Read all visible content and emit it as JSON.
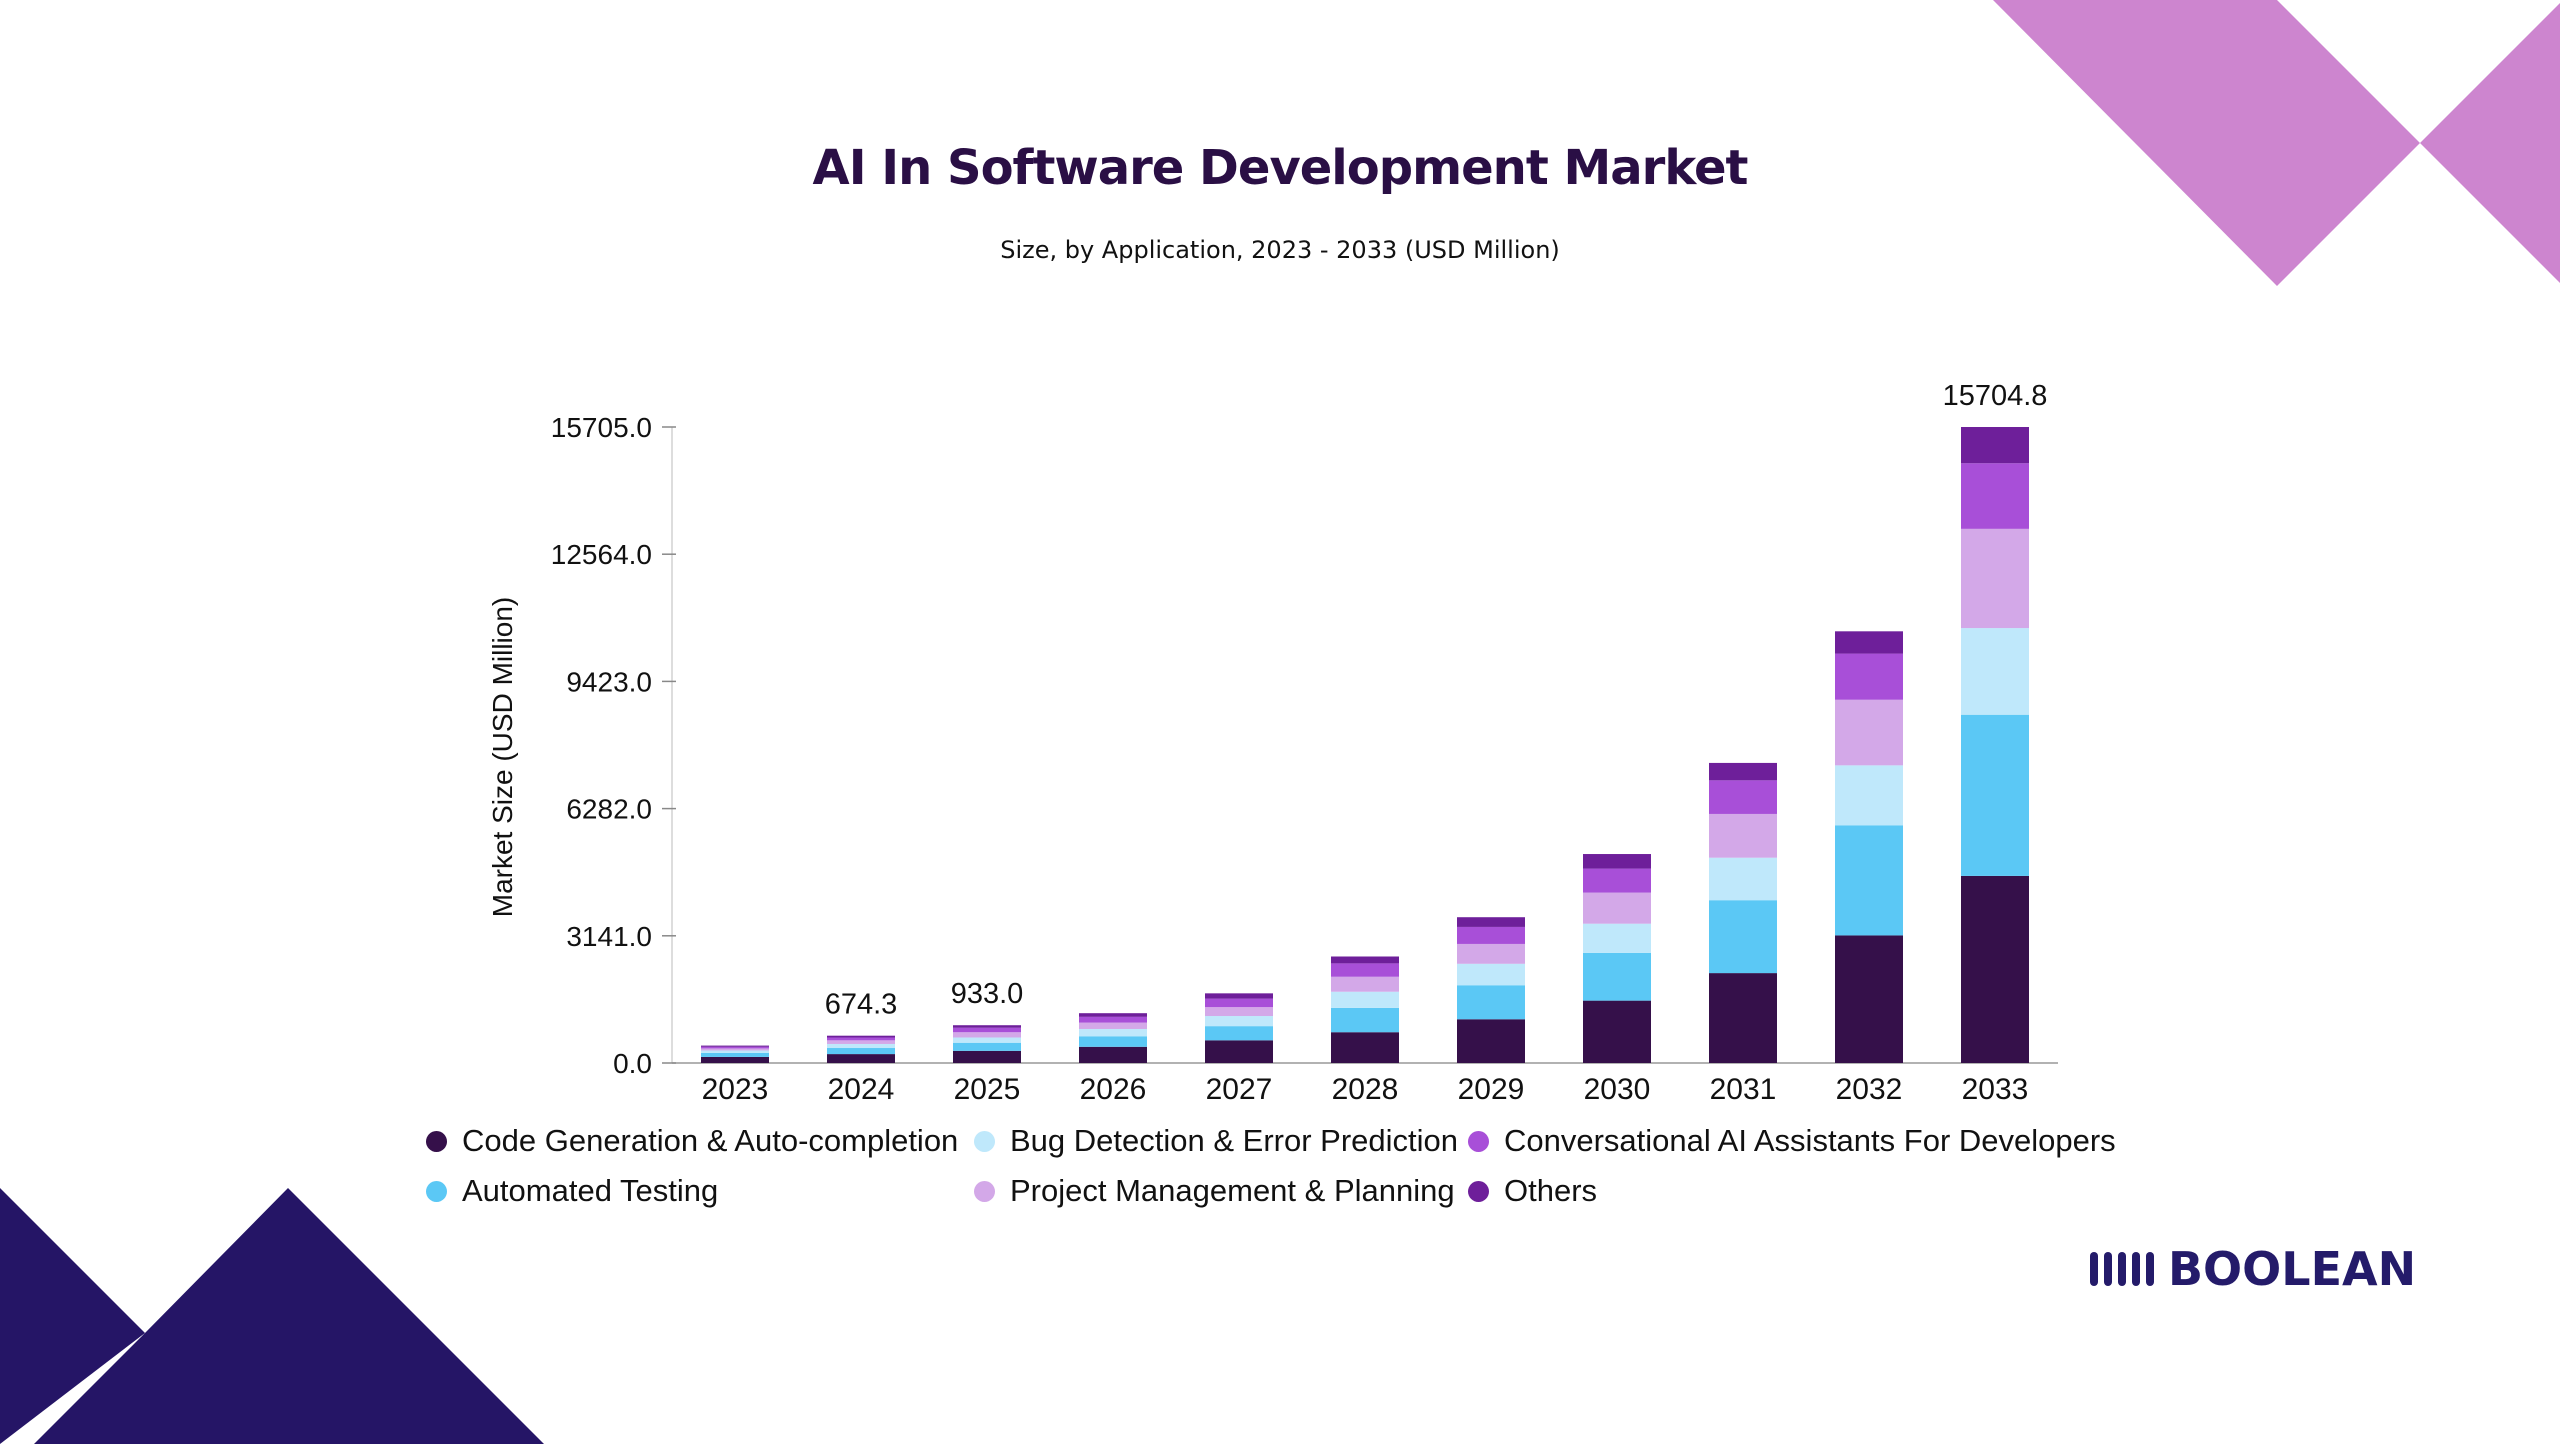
{
  "page": {
    "title": "AI In Software Development Market",
    "subtitle": "Size, by Application, 2023 - 2033 (USD Million)"
  },
  "brand": {
    "name": "BOOLEAN",
    "icon": "bars-logo-icon"
  },
  "colors": {
    "title": "#2a0f45",
    "decor_pink": "#cd85cf",
    "decor_navy": "#251566",
    "brand": "#241b6a"
  },
  "chart_data": {
    "type": "bar",
    "stacked": true,
    "categories": [
      "2023",
      "2024",
      "2025",
      "2026",
      "2027",
      "2028",
      "2029",
      "2030",
      "2031",
      "2032",
      "2033"
    ],
    "series": [
      {
        "name": "Code Generation & Auto-completion",
        "color": "#35104a",
        "values": [
          150,
          220,
          300,
          400,
          560,
          760,
          1080,
          1540,
          2220,
          3150,
          4620
        ]
      },
      {
        "name": "Automated Testing",
        "color": "#5bc8f5",
        "values": [
          100,
          150,
          200,
          260,
          350,
          600,
          840,
          1180,
          1800,
          2720,
          3980
        ]
      },
      {
        "name": "Bug Detection & Error Prediction",
        "color": "#bfe8fb",
        "values": [
          60,
          100,
          130,
          180,
          250,
          400,
          530,
          720,
          1050,
          1480,
          2140
        ]
      },
      {
        "name": "Project Management & Planning",
        "color": "#d3a8e8",
        "values": [
          50,
          90,
          130,
          160,
          220,
          370,
          490,
          770,
          1080,
          1620,
          2450
        ]
      },
      {
        "name": "Conversational AI Assistants For Developers",
        "color": "#a84fd8",
        "values": [
          40,
          70,
          110,
          140,
          210,
          330,
          420,
          590,
          830,
          1140,
          1620
        ]
      },
      {
        "name": "Others",
        "color": "#6e1f9a",
        "values": [
          30,
          44.3,
          63,
          90,
          130,
          170,
          240,
          360,
          430,
          550,
          894.8
        ]
      }
    ],
    "data_labels": [
      {
        "category": "2024",
        "text": "674.3"
      },
      {
        "category": "2025",
        "text": "933.0"
      },
      {
        "category": "2033",
        "text": "15704.8"
      }
    ],
    "ylabel": "Market Size (USD Million)",
    "xlabel": "",
    "yticks": [
      "0.0",
      "3141.0",
      "6282.0",
      "9423.0",
      "12564.0",
      "15705.0"
    ],
    "ylim": [
      0,
      15705
    ],
    "grid": false,
    "legend_position": "bottom"
  }
}
